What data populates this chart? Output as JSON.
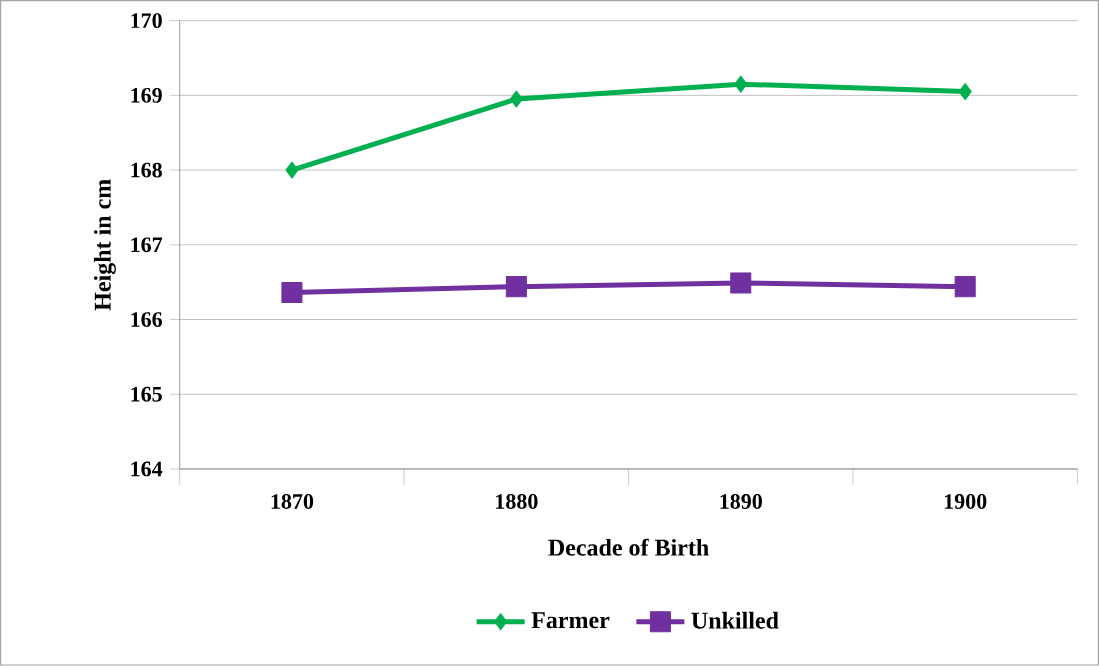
{
  "chart_data": {
    "type": "line",
    "xlabel": "Decade of Birth",
    "ylabel": "Height in cm",
    "categories": [
      "1870",
      "1880",
      "1890",
      "1900"
    ],
    "series": [
      {
        "name": "Farmer",
        "color": "#00b050",
        "marker": "diamond",
        "values": [
          168.0,
          168.95,
          169.15,
          169.05
        ]
      },
      {
        "name": "Unkilled",
        "color": "#7030a0",
        "marker": "square",
        "values": [
          166.36,
          166.44,
          166.49,
          166.44
        ]
      }
    ],
    "ylim": [
      164,
      170
    ],
    "yticks": [
      164,
      165,
      166,
      167,
      168,
      169,
      170
    ],
    "grid": "y",
    "legend": "bottom"
  }
}
